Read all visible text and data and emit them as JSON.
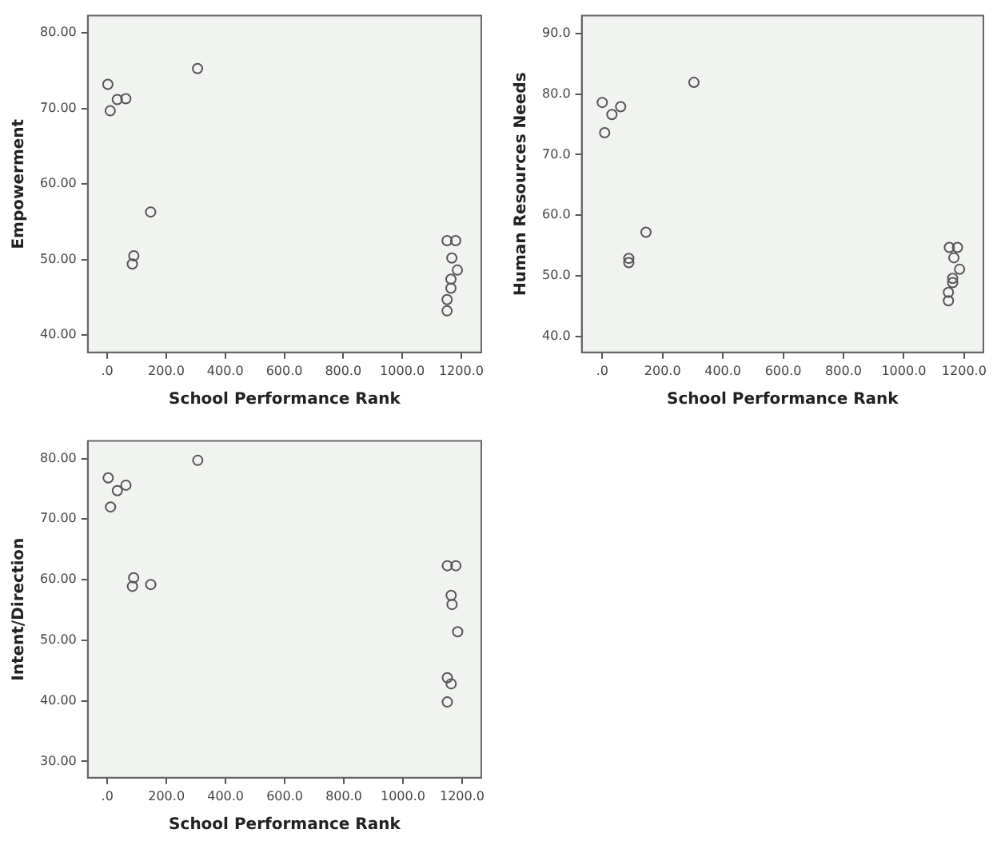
{
  "chart_data": [
    {
      "type": "scatter",
      "xlabel": "School Performance Rank",
      "ylabel": "Empowerment",
      "marker": "circle",
      "grid": false,
      "legend": false,
      "xlim": [
        -66,
        1268
      ],
      "ylim": [
        37.7,
        82.3
      ],
      "xticks": [
        {
          "value": 0,
          "label": ".0"
        },
        {
          "value": 200,
          "label": "200.0"
        },
        {
          "value": 400,
          "label": "400.0"
        },
        {
          "value": 600,
          "label": "600.0"
        },
        {
          "value": 800,
          "label": "800.0"
        },
        {
          "value": 1000,
          "label": "1000.0"
        },
        {
          "value": 1200,
          "label": "1200.0"
        }
      ],
      "yticks": [
        {
          "value": 40,
          "label": "40.00"
        },
        {
          "value": 50,
          "label": "50.00"
        },
        {
          "value": 60,
          "label": "60.00"
        },
        {
          "value": 70,
          "label": "70.00"
        },
        {
          "value": 80,
          "label": "80.00"
        }
      ],
      "series": [
        {
          "color": "#555555",
          "x": [
            2,
            34,
            63,
            10,
            306,
            147,
            90,
            85,
            1152,
            1181,
            1168,
            1187,
            1165,
            1165,
            1152,
            1152
          ],
          "values": [
            73.2,
            71.2,
            71.3,
            69.7,
            75.3,
            56.3,
            50.5,
            49.4,
            52.5,
            52.5,
            50.2,
            48.6,
            47.4,
            46.2,
            44.7,
            43.2
          ]
        }
      ]
    },
    {
      "type": "scatter",
      "xlabel": "School Performance Rank",
      "ylabel": "Human Resources Needs",
      "marker": "circle",
      "grid": false,
      "legend": false,
      "xlim": [
        -68,
        1264
      ],
      "ylim": [
        37.4,
        92.9
      ],
      "xticks": [
        {
          "value": 0,
          "label": ".0"
        },
        {
          "value": 200,
          "label": "200.0"
        },
        {
          "value": 400,
          "label": "400.0"
        },
        {
          "value": 600,
          "label": "600.0"
        },
        {
          "value": 800,
          "label": "800.0"
        },
        {
          "value": 1000,
          "label": "1000.0"
        },
        {
          "value": 1200,
          "label": "1200.0"
        }
      ],
      "yticks": [
        {
          "value": 40,
          "label": "40.0"
        },
        {
          "value": 50,
          "label": "50.0"
        },
        {
          "value": 60,
          "label": "60.0"
        },
        {
          "value": 70,
          "label": "70.0"
        },
        {
          "value": 80,
          "label": "80.0"
        },
        {
          "value": 90,
          "label": "90.0"
        }
      ],
      "series": [
        {
          "color": "#555555",
          "x": [
            0,
            32,
            61,
            8,
            304,
            145,
            88,
            88,
            1151,
            1178,
            1166,
            1185,
            1162,
            1162,
            1148,
            1148
          ],
          "values": [
            78.6,
            76.6,
            77.9,
            73.6,
            81.9,
            57.2,
            52.9,
            52.2,
            54.7,
            54.7,
            53.0,
            51.1,
            49.6,
            48.9,
            47.3,
            45.9
          ]
        }
      ]
    },
    {
      "type": "scatter",
      "xlabel": "School Performance Rank",
      "ylabel": "Intent/Direction",
      "marker": "circle",
      "grid": false,
      "legend": false,
      "xlim": [
        -66,
        1265
      ],
      "ylim": [
        27.3,
        82.9
      ],
      "xticks": [
        {
          "value": 0,
          "label": ".0"
        },
        {
          "value": 200,
          "label": "200.0"
        },
        {
          "value": 400,
          "label": "400.0"
        },
        {
          "value": 600,
          "label": "600.0"
        },
        {
          "value": 800,
          "label": "800.0"
        },
        {
          "value": 1000,
          "label": "1000.0"
        },
        {
          "value": 1200,
          "label": "1200.0"
        }
      ],
      "yticks": [
        {
          "value": 30,
          "label": "30.00"
        },
        {
          "value": 40,
          "label": "40.00"
        },
        {
          "value": 50,
          "label": "50.00"
        },
        {
          "value": 60,
          "label": "60.00"
        },
        {
          "value": 70,
          "label": "70.00"
        },
        {
          "value": 80,
          "label": "80.00"
        }
      ],
      "series": [
        {
          "color": "#555555",
          "x": [
            3,
            34,
            63,
            11,
            306,
            89,
            85,
            147,
            1150,
            1179,
            1163,
            1166,
            1185,
            1150,
            1163,
            1150
          ],
          "values": [
            76.8,
            74.7,
            75.6,
            72.0,
            79.7,
            60.3,
            58.9,
            59.2,
            62.3,
            62.3,
            57.4,
            55.9,
            51.4,
            43.8,
            42.8,
            39.8
          ]
        }
      ]
    }
  ]
}
